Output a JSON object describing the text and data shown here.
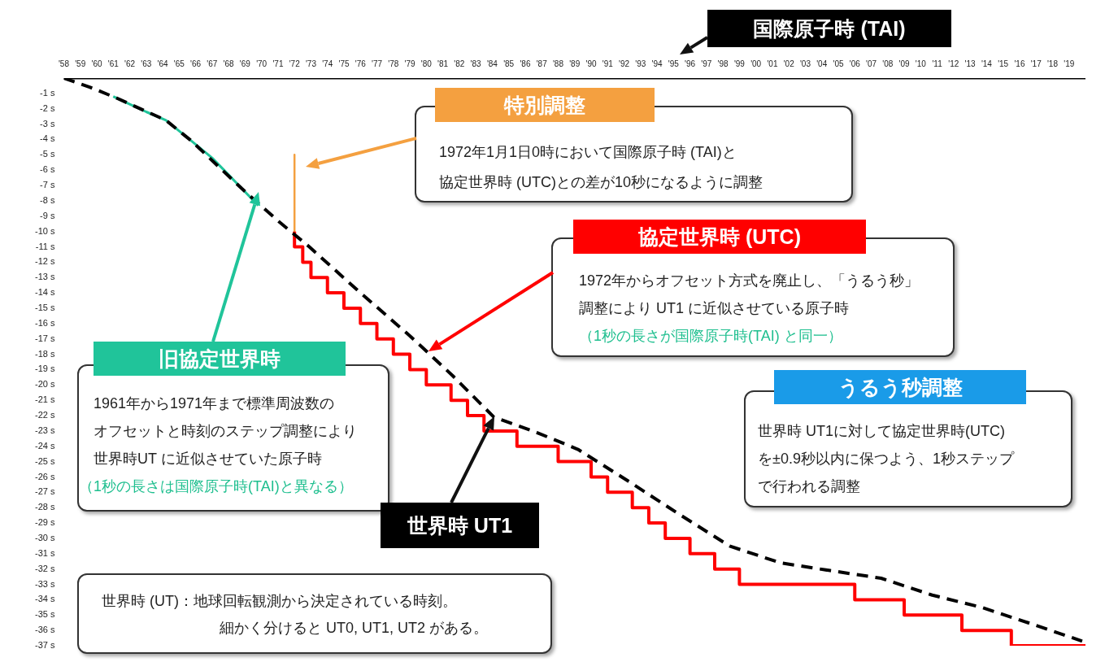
{
  "chart_data": {
    "type": "line",
    "xlim": [
      1958,
      2020
    ],
    "xticks": [
      {
        "value": 1958,
        "label": "'58"
      },
      {
        "value": 1959,
        "label": "'59"
      },
      {
        "value": 1960,
        "label": "'60"
      },
      {
        "value": 1961,
        "label": "'61"
      },
      {
        "value": 1962,
        "label": "'62"
      },
      {
        "value": 1963,
        "label": "'63"
      },
      {
        "value": 1964,
        "label": "'64"
      },
      {
        "value": 1965,
        "label": "'65"
      },
      {
        "value": 1966,
        "label": "'66"
      },
      {
        "value": 1967,
        "label": "'67"
      },
      {
        "value": 1968,
        "label": "'68"
      },
      {
        "value": 1969,
        "label": "'69"
      },
      {
        "value": 1970,
        "label": "'70"
      },
      {
        "value": 1971,
        "label": "'71"
      },
      {
        "value": 1972,
        "label": "'72"
      },
      {
        "value": 1973,
        "label": "'73"
      },
      {
        "value": 1974,
        "label": "'74"
      },
      {
        "value": 1975,
        "label": "'75"
      },
      {
        "value": 1976,
        "label": "'76"
      },
      {
        "value": 1977,
        "label": "'77"
      },
      {
        "value": 1978,
        "label": "'78"
      },
      {
        "value": 1979,
        "label": "'79"
      },
      {
        "value": 1980,
        "label": "'80"
      },
      {
        "value": 1981,
        "label": "'81"
      },
      {
        "value": 1982,
        "label": "'82"
      },
      {
        "value": 1983,
        "label": "'83"
      },
      {
        "value": 1984,
        "label": "'84"
      },
      {
        "value": 1985,
        "label": "'85"
      },
      {
        "value": 1986,
        "label": "'86"
      },
      {
        "value": 1987,
        "label": "'87"
      },
      {
        "value": 1988,
        "label": "'88"
      },
      {
        "value": 1989,
        "label": "'89"
      },
      {
        "value": 1990,
        "label": "'90"
      },
      {
        "value": 1991,
        "label": "'91"
      },
      {
        "value": 1992,
        "label": "'92"
      },
      {
        "value": 1993,
        "label": "'93"
      },
      {
        "value": 1994,
        "label": "'94"
      },
      {
        "value": 1995,
        "label": "'95"
      },
      {
        "value": 1996,
        "label": "'96"
      },
      {
        "value": 1997,
        "label": "'97"
      },
      {
        "value": 1998,
        "label": "'98"
      },
      {
        "value": 1999,
        "label": "'99"
      },
      {
        "value": 2000,
        "label": "'00"
      },
      {
        "value": 2001,
        "label": "'01"
      },
      {
        "value": 2002,
        "label": "'02"
      },
      {
        "value": 2003,
        "label": "'03"
      },
      {
        "value": 2004,
        "label": "'04"
      },
      {
        "value": 2005,
        "label": "'05"
      },
      {
        "value": 2006,
        "label": "'06"
      },
      {
        "value": 2007,
        "label": "'07"
      },
      {
        "value": 2008,
        "label": "'08"
      },
      {
        "value": 2009,
        "label": "'09"
      },
      {
        "value": 2010,
        "label": "'10"
      },
      {
        "value": 2011,
        "label": "'11"
      },
      {
        "value": 2012,
        "label": "'12"
      },
      {
        "value": 2013,
        "label": "'13"
      },
      {
        "value": 2014,
        "label": "'14"
      },
      {
        "value": 2015,
        "label": "'15"
      },
      {
        "value": 2016,
        "label": "'16"
      },
      {
        "value": 2017,
        "label": "'17"
      },
      {
        "value": 2018,
        "label": "'18"
      },
      {
        "value": 2019,
        "label": "'19"
      }
    ],
    "ylim": [
      -37,
      0
    ],
    "yticks": [
      {
        "value": -1,
        "label": "-1 s"
      },
      {
        "value": -2,
        "label": "-2 s"
      },
      {
        "value": -3,
        "label": "-3 s"
      },
      {
        "value": -4,
        "label": "-4 s"
      },
      {
        "value": -5,
        "label": "-5 s"
      },
      {
        "value": -6,
        "label": "-6 s"
      },
      {
        "value": -7,
        "label": "-7 s"
      },
      {
        "value": -8,
        "label": "-8 s"
      },
      {
        "value": -9,
        "label": "-9 s"
      },
      {
        "value": -10,
        "label": "-10 s"
      },
      {
        "value": -11,
        "label": "-11 s"
      },
      {
        "value": -12,
        "label": "-12 s"
      },
      {
        "value": -13,
        "label": "-13 s"
      },
      {
        "value": -14,
        "label": "-14 s"
      },
      {
        "value": -15,
        "label": "-15 s"
      },
      {
        "value": -16,
        "label": "-16 s"
      },
      {
        "value": -17,
        "label": "-17 s"
      },
      {
        "value": -18,
        "label": "-18 s"
      },
      {
        "value": -19,
        "label": "-19 s"
      },
      {
        "value": -20,
        "label": "-20 s"
      },
      {
        "value": -21,
        "label": "-21 s"
      },
      {
        "value": -22,
        "label": "-22 s"
      },
      {
        "value": -23,
        "label": "-23 s"
      },
      {
        "value": -24,
        "label": "-24 s"
      },
      {
        "value": -25,
        "label": "-25 s"
      },
      {
        "value": -26,
        "label": "-26 s"
      },
      {
        "value": -27,
        "label": "-27 s"
      },
      {
        "value": -28,
        "label": "-28 s"
      },
      {
        "value": -29,
        "label": "-29 s"
      },
      {
        "value": -30,
        "label": "-30 s"
      },
      {
        "value": -31,
        "label": "-31 s"
      },
      {
        "value": -32,
        "label": "-32 s"
      },
      {
        "value": -33,
        "label": "-33 s"
      },
      {
        "value": -34,
        "label": "-34 s"
      },
      {
        "value": -35,
        "label": "-35 s"
      },
      {
        "value": -36,
        "label": "-36 s"
      },
      {
        "value": -37,
        "label": "-37 s"
      }
    ],
    "marker": "none",
    "series": [
      {
        "name": "国際原子時 (TAI)",
        "color": "#000000",
        "x": [
          1958,
          2020
        ],
        "values": [
          0,
          0
        ]
      },
      {
        "name": "旧協定世界時",
        "color": "#20c49a",
        "x": [
          1961,
          1962,
          1963,
          1964.2,
          1965.75,
          1967,
          1968,
          1968.8,
          1969.8
        ],
        "values": [
          -1.2,
          -1.7,
          -2.2,
          -2.75,
          -4.1,
          -5.2,
          -6.3,
          -7.2,
          -8.3
        ]
      },
      {
        "name": "特別調整",
        "color": "#f4a040",
        "x": [
          1972,
          1972
        ],
        "values": [
          -5,
          -10
        ]
      },
      {
        "name": "協定世界時 (UTC)",
        "type": "step",
        "color": "#ff0000",
        "x": [
          1972,
          1972.5,
          1973,
          1974,
          1975,
          1976,
          1977,
          1978,
          1979,
          1980,
          1981.5,
          1982.5,
          1983.5,
          1985.5,
          1988,
          1990,
          1991,
          1992.5,
          1993.5,
          1994.5,
          1996,
          1997.5,
          1999,
          2006,
          2009,
          2012.5,
          2015.5,
          2017,
          2020
        ],
        "values": [
          -10,
          -11,
          -12,
          -13,
          -14,
          -15,
          -16,
          -17,
          -18,
          -19,
          -20,
          -21,
          -22,
          -23,
          -24,
          -25,
          -26,
          -27,
          -28,
          -29,
          -30,
          -31,
          -32,
          -33,
          -34,
          -35,
          -36,
          -37,
          -37
        ]
      },
      {
        "name": "世界時 UT1",
        "line_style": "dashed",
        "color": "#000000",
        "x": [
          1958,
          1959.6,
          1961.2,
          1964.2,
          1965.75,
          1968.8,
          1971.1,
          1972.9,
          1975.9,
          1979,
          1981.6,
          1984.1,
          1986.7,
          1989.2,
          1992.3,
          1995.3,
          1998.4,
          2001.5,
          2004.5,
          2007.6,
          2010.7,
          2013.7,
          2016.8,
          2019.8
        ],
        "values": [
          0,
          -0.6,
          -1.3,
          -2.75,
          -4.1,
          -7.2,
          -9.4,
          -11,
          -13.9,
          -16.8,
          -19.4,
          -22.1,
          -23.1,
          -24.2,
          -26.3,
          -28.4,
          -30.5,
          -31.6,
          -32.1,
          -32.6,
          -33.7,
          -34.5,
          -35.6,
          -36.7
        ]
      }
    ],
    "annotations": [
      "1972年1月1日0時において国際原子時 (TAI)と",
      "協定世界時 (UTC)との差が10秒になるように調整",
      "1972年からオフセット方式を廃止し、「うるう秒」",
      "調整により UT1 に近似させている原子時",
      "（1秒の長さが国際原子時(TAI) と同一）",
      "1961年から1971年まで標準周波数の",
      "オフセットと時刻のステップ調整により",
      "世界時UT に近似させていた原子時",
      "（1秒の長さは国際原子時(TAI)と異なる）",
      "世界時 UT1に対して協定世界時(UTC)",
      "を±0.9秒以内に保つよう、1秒ステップ",
      "で行われる調整",
      "世界時 (UT)：地球回転観測から決定されている時刻。",
      "細かく分けると UT0, UT1, UT2 がある。",
      "うるう秒調整"
    ]
  }
}
